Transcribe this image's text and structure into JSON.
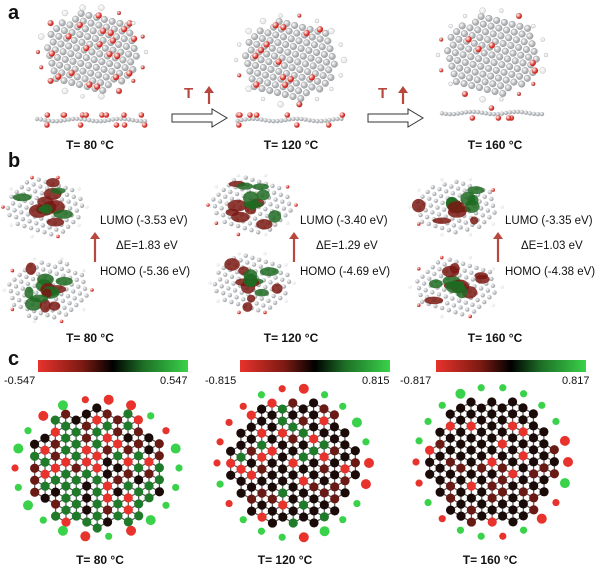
{
  "panel_a": {
    "letter": "a",
    "temps": [
      "T= 80 °C",
      "T= 120 °C",
      "T= 160 °C"
    ],
    "arrow_label": "T"
  },
  "panel_b": {
    "letter": "b",
    "temps": [
      "T= 80 °C",
      "T= 120 °C",
      "T= 160 °C"
    ],
    "levels": [
      {
        "lumo": "LUMO (-3.53 eV)",
        "gap": "ΔE=1.83 eV",
        "homo": "HOMO (-5.36 eV)"
      },
      {
        "lumo": "LUMO (-3.40 eV)",
        "gap": "ΔE=1.29 eV",
        "homo": "HOMO (-4.69 eV)"
      },
      {
        "lumo": "LUMO (-3.35 eV)",
        "gap": "ΔE=1.03 eV",
        "homo": "HOMO (-4.38 eV)"
      }
    ]
  },
  "panel_c": {
    "letter": "c",
    "temps": [
      "T= 80 °C",
      "T= 120 °C",
      "T= 160 °C"
    ],
    "scales": [
      {
        "min": "-0.547",
        "max": "0.547"
      },
      {
        "min": "-0.815",
        "max": "0.815"
      },
      {
        "min": "-0.817",
        "max": "0.817"
      }
    ]
  },
  "colors": {
    "carbon": "#a9acb0",
    "oxygen": "#d12a22",
    "hydrogen": "#e8e8e8",
    "orbital_red": "#7a1712",
    "orbital_green": "#1f6b22",
    "arrow": "#b8473e",
    "charge_neg": "#e8322c",
    "charge_pos": "#39d24a"
  }
}
